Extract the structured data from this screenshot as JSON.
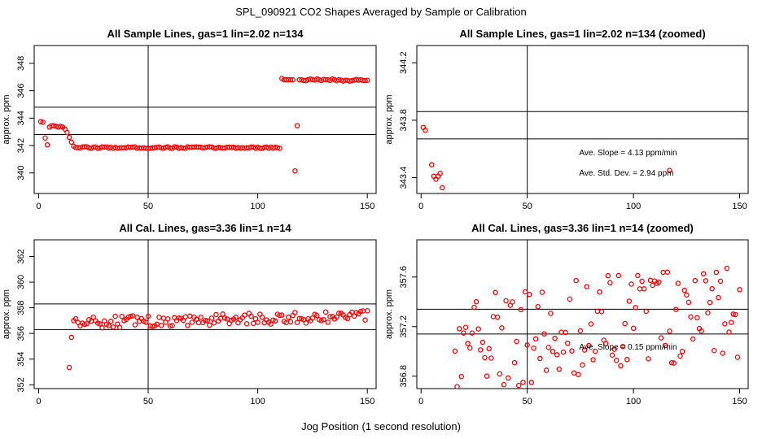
{
  "figure": {
    "title": "SPL_090921  CO2 Shapes Averaged by Sample or Calibration",
    "xlabel": "Jog Position (1 second resolution)",
    "point_color": "#ff0000",
    "line_color": "#000000"
  },
  "chart_data": [
    {
      "id": "sample",
      "type": "scatter",
      "title": "All Sample Lines, gas=1 lin=2.02 n=134",
      "ylabel": "approx. ppm",
      "xlim": [
        -2,
        154
      ],
      "ylim": [
        338.5,
        349.3
      ],
      "xticks": [
        0,
        50,
        100,
        150
      ],
      "yticks": [
        340,
        342,
        344,
        346,
        348
      ],
      "vline": 50,
      "hlines": [
        342.8,
        344.8
      ],
      "annotations": [],
      "segments": [
        {
          "type": "curve",
          "x": [
            1,
            2,
            3,
            4,
            5,
            6,
            7,
            8,
            9,
            10,
            11,
            12,
            13,
            14,
            15,
            16,
            17,
            18
          ],
          "y": [
            343.75,
            343.7,
            342.55,
            342.05,
            343.35,
            343.45,
            343.45,
            343.4,
            343.35,
            343.4,
            343.35,
            343.2,
            342.95,
            342.6,
            342.25,
            341.95,
            341.85,
            341.85
          ]
        },
        {
          "type": "flat",
          "x_start": 19,
          "x_end": 110,
          "base": 341.85,
          "amp": 0.06
        },
        {
          "type": "curve",
          "x": [
            111,
            112,
            113,
            114,
            115,
            116,
            117,
            118,
            119,
            120
          ],
          "y": [
            346.9,
            346.8,
            346.8,
            346.8,
            346.8,
            346.8,
            340.15,
            343.45,
            346.8,
            346.8
          ]
        },
        {
          "type": "flat",
          "x_start": 121,
          "x_end": 150,
          "base": 346.78,
          "amp": 0.08
        }
      ]
    },
    {
      "id": "sample_zoomed",
      "type": "scatter",
      "title": "All Sample Lines, gas=1 lin=2.02 n=134 (zoomed)",
      "ylabel": "approx. ppm",
      "xlim": [
        -2,
        154
      ],
      "ylim": [
        343.29,
        344.32
      ],
      "xticks": [
        0,
        50,
        100,
        150
      ],
      "yticks": [
        343.4,
        343.8,
        344.2
      ],
      "vline": 50,
      "hlines": [
        343.67,
        343.86
      ],
      "annotations": [
        "Ave. Slope =  4.13  ppm/min",
        "Ave. Std. Dev. =  2.94  ppm"
      ],
      "segments": [
        {
          "type": "curve",
          "x": [
            1,
            2,
            5,
            6,
            7,
            8,
            9,
            10,
            117
          ],
          "y": [
            343.75,
            343.73,
            343.49,
            343.41,
            343.39,
            343.41,
            343.43,
            343.33,
            343.45
          ]
        }
      ]
    },
    {
      "id": "cal",
      "type": "scatter",
      "title": "All Cal. Lines, gas=3.36 lin=1 n=14",
      "ylabel": "approx. ppm",
      "xlim": [
        -2,
        154
      ],
      "ylim": [
        351.7,
        363.3
      ],
      "xticks": [
        0,
        50,
        100,
        150
      ],
      "yticks": [
        352,
        354,
        356,
        358,
        360,
        362
      ],
      "vline": 50,
      "hlines": [
        356.3,
        358.3
      ],
      "annotations": [],
      "segments": [
        {
          "type": "curve",
          "x": [
            14,
            15,
            16,
            17,
            18,
            19,
            20,
            21
          ],
          "y": [
            353.35,
            355.7,
            357.0,
            357.15,
            356.85,
            356.6,
            356.8,
            356.7
          ]
        },
        {
          "type": "noisy",
          "x_start": 22,
          "x_end": 150,
          "base_start": 356.85,
          "base_end": 357.35,
          "amp": 0.45
        }
      ]
    },
    {
      "id": "cal_zoomed",
      "type": "scatter",
      "title": "All Cal. Lines, gas=3.36 lin=1 n=14 (zoomed)",
      "ylabel": "approx. ppm",
      "xlim": [
        -2,
        154
      ],
      "ylim": [
        356.7,
        357.9
      ],
      "xticks": [
        0,
        50,
        100,
        150
      ],
      "yticks": [
        356.8,
        357.2,
        357.6
      ],
      "vline": 50,
      "hlines": [
        357.14,
        357.34
      ],
      "annotations": [
        "Ave. Slope =  0.15  ppm/min"
      ],
      "segments": [
        {
          "type": "noisy",
          "x_start": 16,
          "x_end": 150,
          "base_start": 357.05,
          "base_end": 357.35,
          "amp": 0.4
        }
      ]
    }
  ]
}
